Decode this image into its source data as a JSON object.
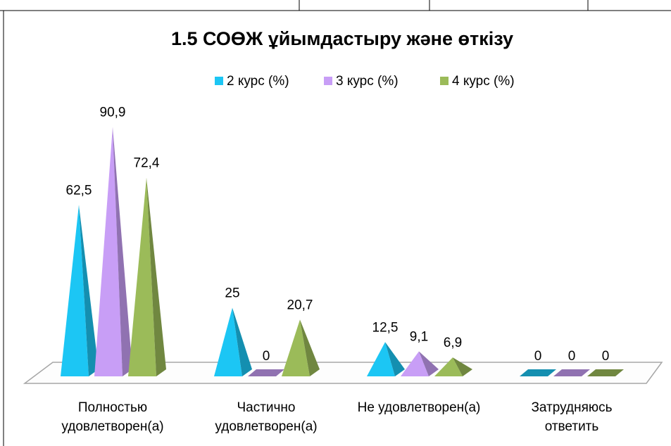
{
  "chart_data": {
    "type": "pyramid3d",
    "title": "1.5 СОӨЖ ұйымдастыру және өткізу",
    "categories": [
      "Полностью удовлетворен(а)",
      "Частично удовлетворен(а)",
      "Не удовлетворен(а)",
      "Затрудняюсь ответить"
    ],
    "series": [
      {
        "name": "2 курс (%)",
        "color": "#1cc6f4",
        "values": [
          62.5,
          25,
          12.5,
          0
        ],
        "value_labels": [
          "62,5",
          "25",
          "12,5",
          "0"
        ]
      },
      {
        "name": "3 курс (%)",
        "color": "#c89ef6",
        "values": [
          90.9,
          0,
          9.1,
          0
        ],
        "value_labels": [
          "90,9",
          "0",
          "9,1",
          "0"
        ]
      },
      {
        "name": "4 курс (%)",
        "color": "#9bbb59",
        "values": [
          72.4,
          20.7,
          6.9,
          0
        ],
        "value_labels": [
          "72,4",
          "20,7",
          "6,9",
          "0"
        ]
      }
    ],
    "legend": "top"
  }
}
